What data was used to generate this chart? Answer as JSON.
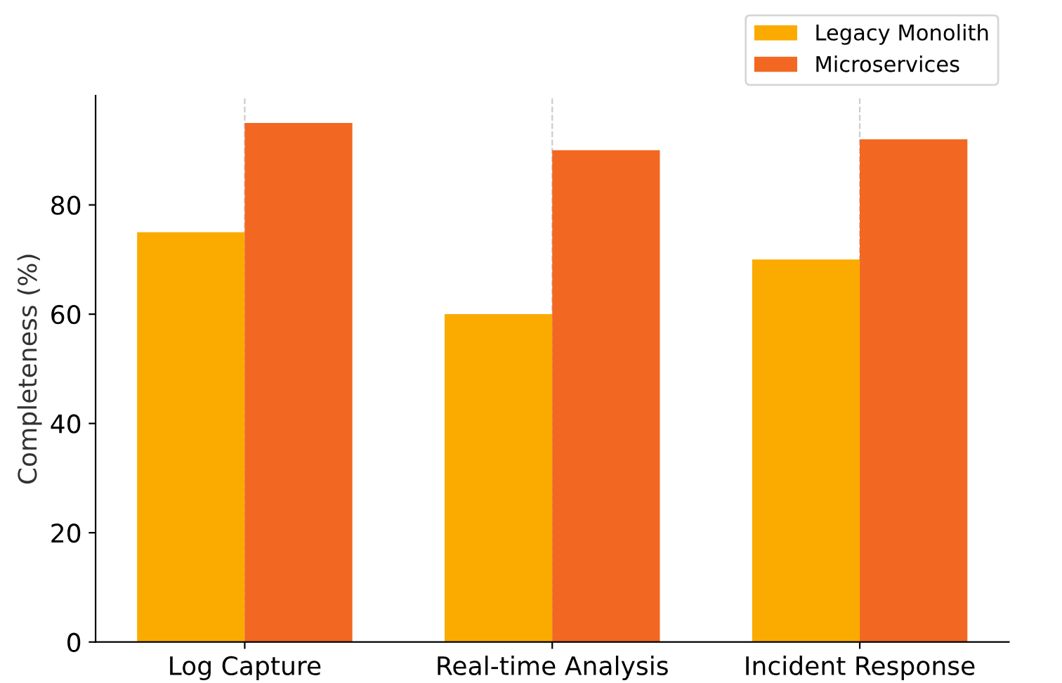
{
  "chart_data": {
    "type": "bar",
    "ylabel": "Completeness (%)",
    "categories": [
      "Log Capture",
      "Real-time Analysis",
      "Incident Response"
    ],
    "series": [
      {
        "name": "Legacy Monolith",
        "color": "#fbab00",
        "values": [
          75,
          60,
          70
        ]
      },
      {
        "name": "Microservices",
        "color": "#f26722",
        "values": [
          95,
          90,
          92
        ]
      }
    ],
    "ylim": [
      0,
      100
    ],
    "yticks": [
      0,
      20,
      40,
      60,
      80
    ],
    "grid": "x",
    "legend": "top right"
  }
}
